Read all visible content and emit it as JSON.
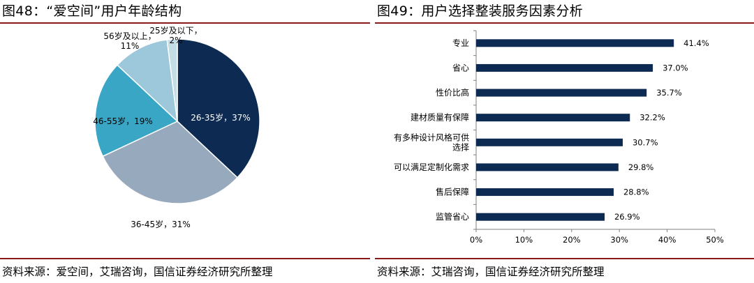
{
  "left": {
    "title": "图48：“爱空间”用户年龄结构",
    "source": "资料来源：爱空间，艾瑞咨询，国信证券经济研究所整理"
  },
  "right": {
    "title": "图49：用户选择整装服务因素分析",
    "source": "资料来源：艾瑞咨询，国信证券经济研究所整理"
  },
  "chart_data": [
    {
      "type": "pie",
      "title": "“爱空间”用户年龄结构",
      "slices": [
        {
          "label": "26-35岁",
          "value": 37,
          "value_label": "37%",
          "color": "#0d2a52"
        },
        {
          "label": "36-45岁",
          "value": 31,
          "value_label": "31%",
          "color": "#97a9bc"
        },
        {
          "label": "46-55岁",
          "value": 19,
          "value_label": "19%",
          "color": "#3aa6c6"
        },
        {
          "label": "56岁及以上",
          "value": 11,
          "value_label": "11%",
          "color": "#9dc7da"
        },
        {
          "label": "25岁及以下",
          "value": 2,
          "value_label": "2%",
          "color": "#c4dce6"
        }
      ],
      "start_angle_deg": 0,
      "direction": "clockwise"
    },
    {
      "type": "bar",
      "orientation": "horizontal",
      "title": "用户选择整装服务因素分析",
      "categories": [
        "专业",
        "省心",
        "性价比高",
        "建材质量有保障",
        "有多种设计风格可供选择",
        "可以满足定制化需求",
        "售后保障",
        "监管省心"
      ],
      "category_lines": [
        [
          "专业"
        ],
        [
          "省心"
        ],
        [
          "性价比高"
        ],
        [
          "建材质量有保障"
        ],
        [
          "有多种设计风格可供",
          "选择"
        ],
        [
          "可以满足定制化需求"
        ],
        [
          "售后保障"
        ],
        [
          "监管省心"
        ]
      ],
      "values": [
        41.4,
        37.0,
        35.7,
        32.2,
        30.7,
        29.8,
        28.8,
        26.9
      ],
      "value_labels": [
        "41.4%",
        "37.0%",
        "35.7%",
        "32.2%",
        "30.7%",
        "29.8%",
        "28.8%",
        "26.9%"
      ],
      "xlim": [
        0,
        50
      ],
      "xticks": [
        0,
        10,
        20,
        30,
        40,
        50
      ],
      "xtick_labels": [
        "0%",
        "10%",
        "20%",
        "30%",
        "40%",
        "50%"
      ],
      "bar_color": "#0d2a52",
      "grid": false
    }
  ]
}
